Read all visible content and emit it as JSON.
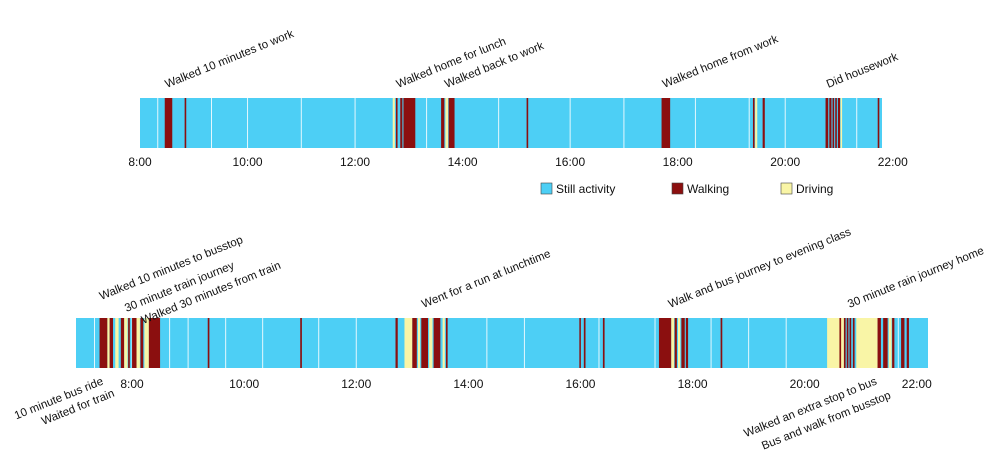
{
  "colors": {
    "still": "#4dcff5",
    "walking": "#8b0f0f",
    "driving": "#f9f5a6"
  },
  "legend": [
    {
      "key": "still",
      "label": "Still activity"
    },
    {
      "key": "walking",
      "label": "Walking"
    },
    {
      "key": "driving",
      "label": "Driving"
    }
  ],
  "chart_data": [
    {
      "type": "timeline",
      "x_unit": "hour",
      "x_range": [
        8.0,
        21.8
      ],
      "ticks": [
        {
          "value": 8,
          "label": "8:00"
        },
        {
          "value": 10,
          "label": "10:00"
        },
        {
          "value": 12,
          "label": "12:00"
        },
        {
          "value": 14,
          "label": "14:00"
        },
        {
          "value": 16,
          "label": "16:00"
        },
        {
          "value": 18,
          "label": "18:00"
        },
        {
          "value": 20,
          "label": "20:00"
        },
        {
          "value": 22,
          "label": "22:00"
        }
      ],
      "gridlines": [
        8.33,
        9.33,
        10.0,
        11.0,
        12.0,
        13.33,
        14.67,
        16.0,
        17.0,
        18.33,
        19.33,
        20.0,
        21.33
      ],
      "segments": [
        {
          "start": 8.46,
          "end": 8.6,
          "activity": "walking"
        },
        {
          "start": 8.83,
          "end": 8.86,
          "activity": "walking"
        },
        {
          "start": 12.7,
          "end": 12.74,
          "activity": "driving"
        },
        {
          "start": 12.76,
          "end": 12.79,
          "activity": "walking"
        },
        {
          "start": 12.84,
          "end": 12.88,
          "activity": "walking"
        },
        {
          "start": 12.9,
          "end": 13.12,
          "activity": "walking"
        },
        {
          "start": 13.6,
          "end": 13.66,
          "activity": "walking"
        },
        {
          "start": 13.68,
          "end": 13.73,
          "activity": "driving"
        },
        {
          "start": 13.74,
          "end": 13.85,
          "activity": "walking"
        },
        {
          "start": 15.19,
          "end": 15.22,
          "activity": "walking"
        },
        {
          "start": 17.7,
          "end": 17.86,
          "activity": "walking"
        },
        {
          "start": 19.4,
          "end": 19.43,
          "activity": "walking"
        },
        {
          "start": 19.44,
          "end": 19.48,
          "activity": "driving"
        },
        {
          "start": 19.58,
          "end": 19.62,
          "activity": "walking"
        },
        {
          "start": 20.75,
          "end": 20.8,
          "activity": "walking"
        },
        {
          "start": 20.82,
          "end": 20.86,
          "activity": "walking"
        },
        {
          "start": 20.88,
          "end": 20.91,
          "activity": "walking"
        },
        {
          "start": 20.93,
          "end": 20.96,
          "activity": "walking"
        },
        {
          "start": 20.98,
          "end": 21.02,
          "activity": "walking"
        },
        {
          "start": 21.03,
          "end": 21.05,
          "activity": "driving"
        },
        {
          "start": 21.72,
          "end": 21.75,
          "activity": "walking"
        }
      ],
      "annotations": [
        {
          "text": "Walked 10 minutes to work",
          "x": 8.5,
          "position": "above"
        },
        {
          "text": "Walked home for lunch",
          "x": 12.8,
          "position": "above"
        },
        {
          "text": "Walked back to work",
          "x": 13.7,
          "position": "above"
        },
        {
          "text": "Walked home from work",
          "x": 17.75,
          "position": "above"
        },
        {
          "text": "Did housework",
          "x": 20.8,
          "position": "above"
        }
      ]
    },
    {
      "type": "timeline",
      "x_unit": "hour",
      "x_range": [
        7.0,
        22.2
      ],
      "ticks": [
        {
          "value": 8,
          "label": "8:00"
        },
        {
          "value": 10,
          "label": "10:00"
        },
        {
          "value": 12,
          "label": "12:00"
        },
        {
          "value": 14,
          "label": "14:00"
        },
        {
          "value": 16,
          "label": "16:00"
        },
        {
          "value": 18,
          "label": "18:00"
        },
        {
          "value": 20,
          "label": "20:00"
        },
        {
          "value": 22,
          "label": "22:00"
        }
      ],
      "gridlines": [
        7.33,
        8.0,
        8.67,
        9.0,
        9.67,
        10.33,
        11.33,
        12.0,
        13.33,
        14.33,
        15.0,
        16.33,
        17.33,
        18.33,
        19.0,
        19.67,
        21.67
      ],
      "segments": [
        {
          "start": 7.42,
          "end": 7.56,
          "activity": "walking"
        },
        {
          "start": 7.56,
          "end": 7.6,
          "activity": "driving"
        },
        {
          "start": 7.6,
          "end": 7.66,
          "activity": "walking"
        },
        {
          "start": 7.7,
          "end": 7.76,
          "activity": "driving"
        },
        {
          "start": 7.8,
          "end": 7.86,
          "activity": "walking"
        },
        {
          "start": 7.86,
          "end": 7.92,
          "activity": "driving"
        },
        {
          "start": 7.93,
          "end": 7.96,
          "activity": "walking"
        },
        {
          "start": 8.0,
          "end": 8.08,
          "activity": "walking"
        },
        {
          "start": 8.08,
          "end": 8.14,
          "activity": "driving"
        },
        {
          "start": 8.15,
          "end": 8.2,
          "activity": "walking"
        },
        {
          "start": 8.22,
          "end": 8.3,
          "activity": "driving"
        },
        {
          "start": 8.3,
          "end": 8.5,
          "activity": "walking"
        },
        {
          "start": 9.35,
          "end": 9.38,
          "activity": "walking"
        },
        {
          "start": 11.0,
          "end": 11.03,
          "activity": "walking"
        },
        {
          "start": 12.7,
          "end": 12.74,
          "activity": "walking"
        },
        {
          "start": 12.86,
          "end": 13.0,
          "activity": "driving"
        },
        {
          "start": 13.0,
          "end": 13.08,
          "activity": "walking"
        },
        {
          "start": 13.1,
          "end": 13.14,
          "activity": "driving"
        },
        {
          "start": 13.16,
          "end": 13.28,
          "activity": "walking"
        },
        {
          "start": 13.3,
          "end": 13.36,
          "activity": "driving"
        },
        {
          "start": 13.38,
          "end": 13.5,
          "activity": "walking"
        },
        {
          "start": 13.54,
          "end": 13.58,
          "activity": "driving"
        },
        {
          "start": 13.6,
          "end": 13.63,
          "activity": "walking"
        },
        {
          "start": 15.98,
          "end": 16.0,
          "activity": "walking"
        },
        {
          "start": 16.06,
          "end": 16.09,
          "activity": "walking"
        },
        {
          "start": 16.4,
          "end": 16.43,
          "activity": "walking"
        },
        {
          "start": 17.4,
          "end": 17.62,
          "activity": "walking"
        },
        {
          "start": 17.62,
          "end": 17.67,
          "activity": "driving"
        },
        {
          "start": 17.68,
          "end": 17.72,
          "activity": "walking"
        },
        {
          "start": 17.74,
          "end": 17.78,
          "activity": "driving"
        },
        {
          "start": 17.8,
          "end": 17.86,
          "activity": "walking"
        },
        {
          "start": 17.88,
          "end": 17.92,
          "activity": "walking"
        },
        {
          "start": 18.5,
          "end": 18.53,
          "activity": "walking"
        },
        {
          "start": 20.4,
          "end": 20.7,
          "activity": "driving"
        },
        {
          "start": 20.62,
          "end": 20.65,
          "activity": "walking"
        },
        {
          "start": 20.7,
          "end": 20.73,
          "activity": "walking"
        },
        {
          "start": 20.75,
          "end": 20.78,
          "activity": "walking"
        },
        {
          "start": 20.8,
          "end": 20.83,
          "activity": "walking"
        },
        {
          "start": 20.86,
          "end": 20.89,
          "activity": "walking"
        },
        {
          "start": 20.92,
          "end": 21.3,
          "activity": "driving"
        },
        {
          "start": 21.3,
          "end": 21.36,
          "activity": "walking"
        },
        {
          "start": 21.4,
          "end": 21.48,
          "activity": "walking"
        },
        {
          "start": 21.5,
          "end": 21.55,
          "activity": "driving"
        },
        {
          "start": 21.56,
          "end": 21.6,
          "activity": "walking"
        },
        {
          "start": 21.72,
          "end": 21.78,
          "activity": "walking"
        },
        {
          "start": 21.82,
          "end": 21.86,
          "activity": "walking"
        }
      ],
      "annotations": [
        {
          "text": "Walked 10 minutes to busstop",
          "x": 7.45,
          "position": "above"
        },
        {
          "text": "30 minute train journey",
          "x": 7.9,
          "position": "above"
        },
        {
          "text": "Walked 30 minutes from train",
          "x": 8.2,
          "position": "above"
        },
        {
          "text": "Went for a run at lunchtime",
          "x": 13.2,
          "position": "above"
        },
        {
          "text": "Walk and bus journey to evening class",
          "x": 17.6,
          "position": "above"
        },
        {
          "text": "30 minute rain journey home",
          "x": 20.8,
          "position": "above"
        },
        {
          "text": "10 minute bus ride",
          "x": 7.5,
          "position": "below"
        },
        {
          "text": "Waited for train",
          "x": 7.7,
          "position": "below"
        },
        {
          "text": "Walked an extra stop to bus",
          "x": 21.3,
          "position": "below"
        },
        {
          "text": "Bus and walk from busstop",
          "x": 21.55,
          "position": "below"
        }
      ]
    }
  ]
}
